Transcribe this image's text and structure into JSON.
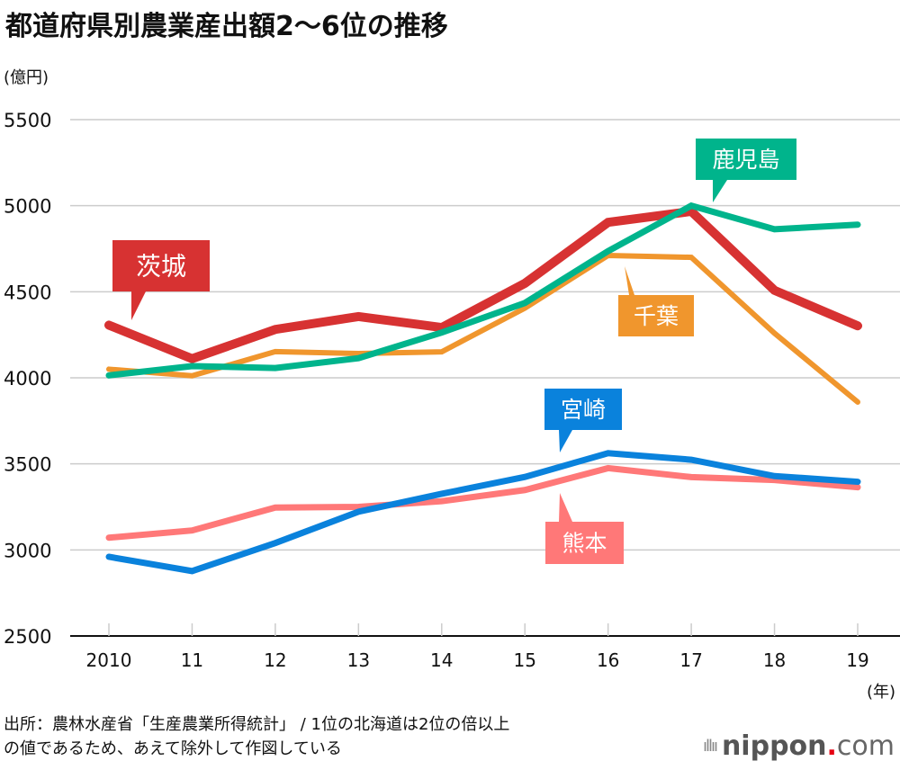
{
  "header": {
    "title": "都道府県別農業産出額2〜6位の推移",
    "unit": "(億円)"
  },
  "footer": {
    "source_line1": "出所：農林水産省「生産農業所得統計」 / 1位の北海道は2位の倍以上",
    "source_line2": "の値であるため、あえて除外して作図している",
    "logo_name": "nippon",
    "logo_dot": ".",
    "logo_suffix": "com",
    "logo_bars": "ıllıı"
  },
  "chart_data": {
    "type": "line",
    "title": "都道府県別農業産出額2〜6位の推移",
    "xlabel": "(年)",
    "ylabel": "(億円)",
    "x": [
      "2010",
      "11",
      "12",
      "13",
      "14",
      "15",
      "16",
      "17",
      "18",
      "19"
    ],
    "ylim": [
      2500,
      5500
    ],
    "yticks": [
      2500,
      3000,
      3500,
      4000,
      4500,
      5000,
      5500
    ],
    "grid": true,
    "series": [
      {
        "name": "鹿児島",
        "color": "#00b48c",
        "values": [
          4014,
          4068,
          4057,
          4114,
          4263,
          4435,
          4736,
          5000,
          4863,
          4890
        ],
        "label_anchor": "17",
        "label_side": "above"
      },
      {
        "name": "千葉",
        "color": "#f0962d",
        "values": [
          4050,
          4012,
          4152,
          4141,
          4151,
          4405,
          4711,
          4700,
          4259,
          3859
        ],
        "label_anchor": "16",
        "label_side": "below"
      },
      {
        "name": "茨城",
        "color": "#d73232",
        "values": [
          4306,
          4111,
          4281,
          4356,
          4292,
          4549,
          4903,
          4967,
          4508,
          4302
        ],
        "label_anchor": "2010",
        "label_side": "above"
      },
      {
        "name": "宮崎",
        "color": "#0a82dc",
        "values": [
          2960,
          2877,
          3040,
          3222,
          3326,
          3424,
          3562,
          3524,
          3429,
          3396
        ],
        "label_anchor": "15",
        "label_side": "above"
      },
      {
        "name": "熊本",
        "color": "#ff7878",
        "values": [
          3071,
          3113,
          3246,
          3250,
          3283,
          3348,
          3475,
          3423,
          3406,
          3364
        ],
        "label_anchor": "15",
        "label_side": "below"
      }
    ]
  }
}
